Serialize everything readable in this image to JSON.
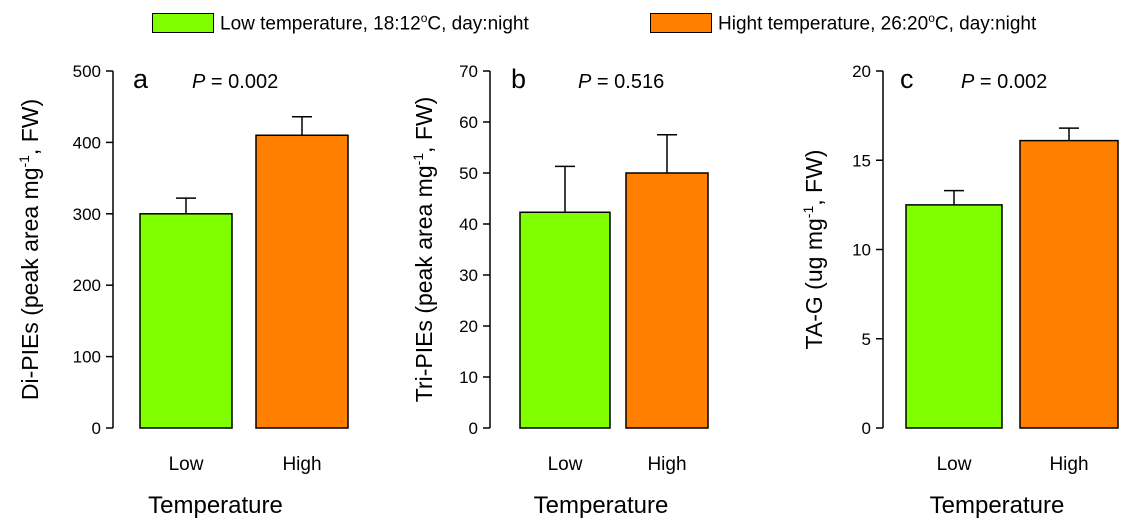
{
  "legend": {
    "items": [
      {
        "label_main": "Low temperature, 18:12",
        "label_sup": "o",
        "label_tail": "C, day:night",
        "color": "#80ff00"
      },
      {
        "label_main": "Hight temperature, 26:20",
        "label_sup": "o",
        "label_tail": "C, day:night",
        "color": "#ff8000"
      }
    ]
  },
  "chart_data": [
    {
      "type": "bar",
      "panel_label": "a",
      "p_label": "P",
      "p_value": " = 0.002",
      "categories": [
        "Low",
        "High"
      ],
      "values": [
        300,
        410
      ],
      "errors": [
        22,
        26
      ],
      "colors": [
        "#80ff00",
        "#ff8000"
      ],
      "ylabel_main": "Di-PIEs (peak area mg",
      "ylabel_sup": "-1",
      "ylabel_tail": ", FW)",
      "xlabel": "Temperature",
      "ylim": [
        0,
        500
      ],
      "yticks": [
        0,
        100,
        200,
        300,
        400,
        500
      ]
    },
    {
      "type": "bar",
      "panel_label": "b",
      "p_label": "P",
      "p_value": " = 0.516",
      "categories": [
        "Low",
        "High"
      ],
      "values": [
        42.3,
        50
      ],
      "errors": [
        9,
        7.5
      ],
      "colors": [
        "#80ff00",
        "#ff8000"
      ],
      "ylabel_main": "Tri-PIEs (peak area mg",
      "ylabel_sup": "-1",
      "ylabel_tail": ", FW)",
      "xlabel": "Temperature",
      "ylim": [
        0,
        70
      ],
      "yticks": [
        0,
        10,
        20,
        30,
        40,
        50,
        60,
        70
      ]
    },
    {
      "type": "bar",
      "panel_label": "c",
      "p_label": "P",
      "p_value": " = 0.002",
      "categories": [
        "Low",
        "High"
      ],
      "values": [
        12.5,
        16.1
      ],
      "errors": [
        0.8,
        0.7
      ],
      "colors": [
        "#80ff00",
        "#ff8000"
      ],
      "ylabel_main": "TA-G (ug mg",
      "ylabel_sup": "-1",
      "ylabel_tail": ", FW)",
      "xlabel": "Temperature",
      "ylim": [
        0,
        20
      ],
      "yticks": [
        0,
        5,
        10,
        15,
        20
      ]
    }
  ]
}
